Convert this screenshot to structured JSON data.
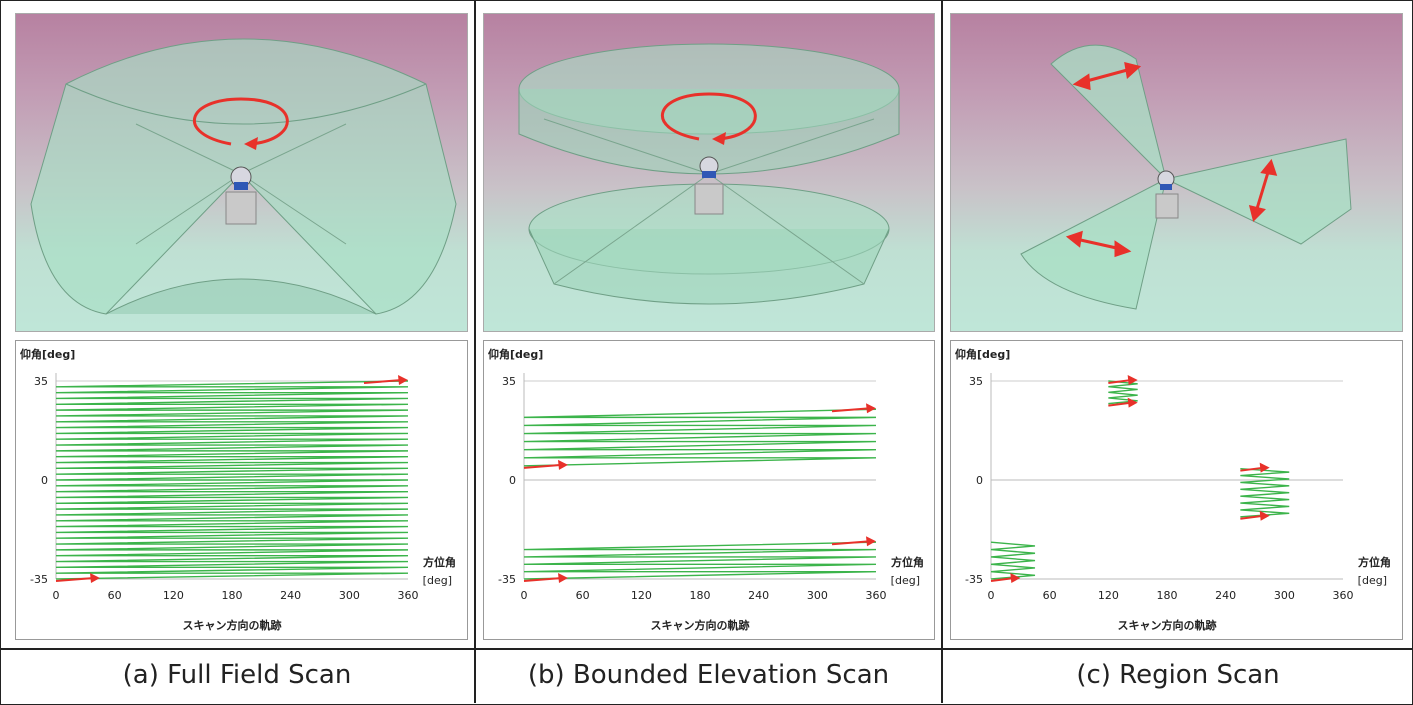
{
  "panels": [
    {
      "caption": "(a) Full Field Scan",
      "rotation_icon": "rotate-arrow-icon",
      "chart_data": {
        "type": "line",
        "ylabel": "仰角[deg]",
        "xlabel_line1": "方位角",
        "xlabel_line2": "[deg]",
        "xtitle": "スキャン方向の軌跡",
        "xlim": [
          0,
          360
        ],
        "ylim": [
          -35,
          35
        ],
        "xticks": [
          "0",
          "60",
          "120",
          "180",
          "240",
          "300",
          "360"
        ],
        "yticks": [
          "35",
          "0",
          "-35"
        ],
        "pattern": "raster",
        "segments": [
          {
            "x": [
              0,
              360
            ],
            "y": [
              -35,
              35
            ],
            "rows": 34
          }
        ],
        "arrows": [
          {
            "x": [
              0,
              45
            ],
            "y": -35
          },
          {
            "x": [
              315,
              360
            ],
            "y": 35
          }
        ]
      }
    },
    {
      "caption": "(b) Bounded Elevation Scan",
      "rotation_icon": "rotate-arrow-icon",
      "chart_data": {
        "type": "line",
        "ylabel": "仰角[deg]",
        "xlabel_line1": "方位角",
        "xlabel_line2": "[deg]",
        "xtitle": "スキャン方向の軌跡",
        "xlim": [
          0,
          360
        ],
        "ylim": [
          -35,
          35
        ],
        "xticks": [
          "0",
          "60",
          "120",
          "180",
          "240",
          "300",
          "360"
        ],
        "yticks": [
          "35",
          "0",
          "-35"
        ],
        "pattern": "raster",
        "segments": [
          {
            "x": [
              0,
              360
            ],
            "y": [
              5,
              25
            ],
            "rows": 7
          },
          {
            "x": [
              0,
              360
            ],
            "y": [
              -35,
              -22
            ],
            "rows": 5
          }
        ],
        "arrows": [
          {
            "x": [
              0,
              45
            ],
            "y": 5
          },
          {
            "x": [
              315,
              360
            ],
            "y": 25
          },
          {
            "x": [
              0,
              45
            ],
            "y": -35
          },
          {
            "x": [
              315,
              360
            ],
            "y": -22
          }
        ]
      }
    },
    {
      "caption": "(c) Region Scan",
      "rotation_icon": "double-arrow-icon",
      "chart_data": {
        "type": "line",
        "ylabel": "仰角[deg]",
        "xlabel_line1": "方位角",
        "xlabel_line2": "[deg]",
        "xtitle": "スキャン方向の軌跡",
        "xlim": [
          0,
          360
        ],
        "ylim": [
          -35,
          35
        ],
        "xticks": [
          "0",
          "60",
          "120",
          "180",
          "240",
          "300",
          "360"
        ],
        "yticks": [
          "35",
          "0",
          "-35"
        ],
        "pattern": "zigzag",
        "segments": [
          {
            "x": [
              0,
              45
            ],
            "y": [
              -35,
              -22
            ],
            "rows": 5
          },
          {
            "x": [
              120,
              150
            ],
            "y": [
              27,
              35
            ],
            "rows": 4
          },
          {
            "x": [
              255,
              305
            ],
            "y": [
              -13,
              4
            ],
            "rows": 7
          }
        ],
        "arrows": [
          {
            "x": [
              0,
              30
            ],
            "y": -35
          },
          {
            "x": [
              120,
              150
            ],
            "y": 35
          },
          {
            "x": [
              120,
              150
            ],
            "y": 27
          },
          {
            "x": [
              255,
              285
            ],
            "y": -13
          },
          {
            "x": [
              255,
              285
            ],
            "y": 4
          }
        ]
      }
    }
  ]
}
